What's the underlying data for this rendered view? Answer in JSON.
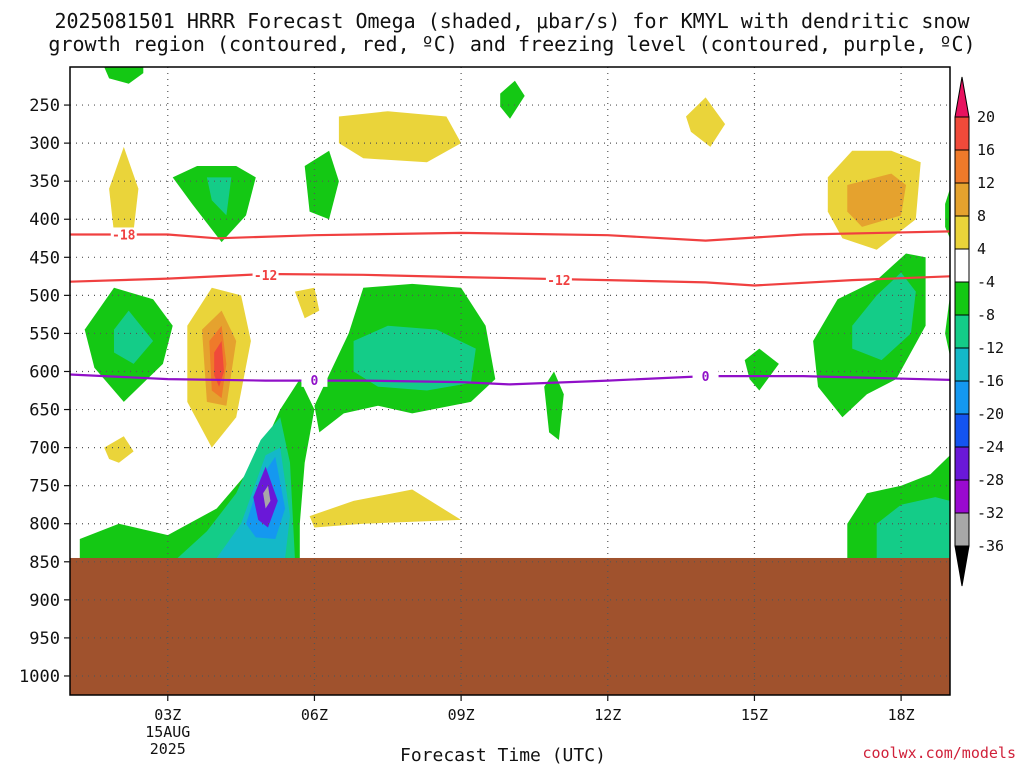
{
  "title_line1": "2025081501 HRRR Forecast Omega (shaded, μbar/s) for KMYL with dendritic snow",
  "title_line2": "growth region (contoured, red, ºC) and freezing level (contoured, purple, ºC)",
  "watermark": "coolwx.com/models",
  "chart_data": {
    "type": "heatmap",
    "xlabel": "Forecast Time (UTC)",
    "x_ticks": [
      {
        "label": "03Z",
        "hours": 3,
        "sub": [
          "15AUG",
          "2025"
        ]
      },
      {
        "label": "06Z",
        "hours": 6
      },
      {
        "label": "09Z",
        "hours": 9
      },
      {
        "label": "12Z",
        "hours": 12
      },
      {
        "label": "15Z",
        "hours": 15
      },
      {
        "label": "18Z",
        "hours": 18
      }
    ],
    "xlim_hours": [
      1,
      19
    ],
    "y_ticks": [
      250,
      300,
      350,
      400,
      450,
      500,
      550,
      600,
      650,
      700,
      750,
      800,
      850,
      900,
      950,
      1000
    ],
    "ylim_hPa": [
      200,
      1025
    ],
    "ground_pressure_hPa": 845,
    "colorbar": {
      "levels": [
        20,
        16,
        12,
        8,
        4,
        -4,
        -8,
        -12,
        -16,
        -20,
        -24,
        -28,
        -32,
        -36
      ],
      "colors": [
        "#e8125f",
        "#f04a3a",
        "#ef7a2a",
        "#e5a22e",
        "#ead43a",
        "#ffffff",
        "#14c814",
        "#14cc88",
        "#14b8c8",
        "#1498f0",
        "#1454f0",
        "#6a18d8",
        "#9a0ad0",
        "#a8a8a8",
        "#000000"
      ]
    },
    "contours": [
      {
        "label": "-18",
        "color": "#f04040",
        "points": [
          [
            1,
            420
          ],
          [
            3,
            420
          ],
          [
            4,
            425
          ],
          [
            6,
            421
          ],
          [
            9,
            418
          ],
          [
            12,
            421
          ],
          [
            14,
            428
          ],
          [
            16,
            420
          ],
          [
            19,
            416
          ]
        ]
      },
      {
        "label": "-12",
        "color": "#f04040",
        "points": [
          [
            1,
            482
          ],
          [
            3,
            478
          ],
          [
            5,
            472
          ],
          [
            7,
            473
          ],
          [
            9,
            476
          ],
          [
            12,
            480
          ],
          [
            14,
            483
          ],
          [
            15,
            487
          ],
          [
            17,
            480
          ],
          [
            19,
            475
          ]
        ]
      },
      {
        "label": "0",
        "color": "#9010c8",
        "points": [
          [
            1,
            604
          ],
          [
            3,
            610
          ],
          [
            5,
            612
          ],
          [
            7,
            612
          ],
          [
            9,
            614
          ],
          [
            10,
            617
          ],
          [
            12,
            612
          ],
          [
            14,
            606
          ],
          [
            16,
            606
          ],
          [
            19,
            611
          ]
        ]
      }
    ],
    "contour_labels": [
      {
        "text": "-18",
        "hours": 2.1,
        "hPa": 420
      },
      {
        "text": "-12",
        "hours": 5.0,
        "hPa": 473
      },
      {
        "text": "-12",
        "hours": 11.0,
        "hPa": 480
      },
      {
        "text": "0",
        "hours": 6.0,
        "hPa": 611
      },
      {
        "text": "0",
        "hours": 14.0,
        "hPa": 606
      }
    ],
    "omega_regions": [
      {
        "value": -6,
        "points": [
          [
            1.7,
            200
          ],
          [
            2.5,
            200
          ],
          [
            2.5,
            208
          ],
          [
            2.2,
            222
          ],
          [
            1.8,
            215
          ]
        ]
      },
      {
        "value": 6,
        "points": [
          [
            1.8,
            360
          ],
          [
            2.1,
            305
          ],
          [
            2.4,
            360
          ],
          [
            2.3,
            415
          ],
          [
            1.9,
            418
          ]
        ]
      },
      {
        "value": -6,
        "points": [
          [
            3.1,
            345
          ],
          [
            3.6,
            330
          ],
          [
            4.4,
            330
          ],
          [
            4.8,
            345
          ],
          [
            4.6,
            395
          ],
          [
            4.1,
            430
          ],
          [
            3.5,
            380
          ]
        ]
      },
      {
        "value": -12,
        "points": [
          [
            3.8,
            345
          ],
          [
            4.3,
            345
          ],
          [
            4.2,
            395
          ],
          [
            3.9,
            375
          ]
        ]
      },
      {
        "value": -6,
        "points": [
          [
            5.8,
            330
          ],
          [
            6.3,
            310
          ],
          [
            6.5,
            350
          ],
          [
            6.3,
            400
          ],
          [
            5.9,
            390
          ]
        ]
      },
      {
        "value": 6,
        "points": [
          [
            6.5,
            265
          ],
          [
            7.5,
            258
          ],
          [
            8.7,
            265
          ],
          [
            9.0,
            300
          ],
          [
            8.3,
            325
          ],
          [
            7.0,
            320
          ],
          [
            6.5,
            300
          ]
        ]
      },
      {
        "value": -6,
        "points": [
          [
            9.8,
            235
          ],
          [
            10.1,
            218
          ],
          [
            10.3,
            238
          ],
          [
            10.0,
            268
          ],
          [
            9.8,
            252
          ]
        ]
      },
      {
        "value": 6,
        "points": [
          [
            13.6,
            265
          ],
          [
            14.0,
            240
          ],
          [
            14.4,
            275
          ],
          [
            14.1,
            305
          ],
          [
            13.7,
            285
          ]
        ]
      },
      {
        "value": 6,
        "points": [
          [
            16.5,
            345
          ],
          [
            17.0,
            310
          ],
          [
            17.8,
            310
          ],
          [
            18.4,
            325
          ],
          [
            18.3,
            400
          ],
          [
            17.5,
            440
          ],
          [
            16.8,
            425
          ],
          [
            16.5,
            390
          ]
        ]
      },
      {
        "value": 10,
        "points": [
          [
            16.9,
            355
          ],
          [
            17.8,
            340
          ],
          [
            18.1,
            355
          ],
          [
            18.0,
            395
          ],
          [
            17.2,
            410
          ],
          [
            16.9,
            390
          ]
        ]
      },
      {
        "value": -6,
        "points": [
          [
            18.9,
            380
          ],
          [
            19.0,
            360
          ],
          [
            19.0,
            425
          ],
          [
            18.9,
            410
          ]
        ]
      },
      {
        "value": -6,
        "points": [
          [
            1.3,
            545
          ],
          [
            1.9,
            490
          ],
          [
            2.7,
            505
          ],
          [
            3.1,
            540
          ],
          [
            2.9,
            590
          ],
          [
            2.1,
            640
          ],
          [
            1.5,
            595
          ]
        ]
      },
      {
        "value": -12,
        "points": [
          [
            1.9,
            545
          ],
          [
            2.2,
            520
          ],
          [
            2.7,
            560
          ],
          [
            2.3,
            590
          ],
          [
            1.9,
            575
          ]
        ]
      },
      {
        "value": 6,
        "points": [
          [
            3.4,
            540
          ],
          [
            3.9,
            490
          ],
          [
            4.5,
            500
          ],
          [
            4.7,
            560
          ],
          [
            4.4,
            660
          ],
          [
            3.9,
            700
          ],
          [
            3.4,
            640
          ]
        ]
      },
      {
        "value": 10,
        "points": [
          [
            3.7,
            545
          ],
          [
            4.1,
            520
          ],
          [
            4.4,
            560
          ],
          [
            4.2,
            645
          ],
          [
            3.8,
            640
          ]
        ]
      },
      {
        "value": 14,
        "points": [
          [
            3.85,
            560
          ],
          [
            4.1,
            540
          ],
          [
            4.2,
            590
          ],
          [
            4.1,
            635
          ],
          [
            3.9,
            625
          ]
        ]
      },
      {
        "value": 18,
        "points": [
          [
            3.95,
            575
          ],
          [
            4.1,
            560
          ],
          [
            4.15,
            600
          ],
          [
            4.05,
            620
          ],
          [
            3.95,
            605
          ]
        ]
      },
      {
        "value": 6,
        "points": [
          [
            5.6,
            495
          ],
          [
            6.0,
            490
          ],
          [
            6.1,
            520
          ],
          [
            5.8,
            530
          ]
        ]
      },
      {
        "value": -6,
        "points": [
          [
            6.0,
            645
          ],
          [
            6.7,
            550
          ],
          [
            7.0,
            490
          ],
          [
            8.0,
            485
          ],
          [
            9.0,
            490
          ],
          [
            9.5,
            540
          ],
          [
            9.7,
            610
          ],
          [
            9.2,
            640
          ],
          [
            8.0,
            655
          ],
          [
            7.3,
            645
          ],
          [
            6.6,
            655
          ],
          [
            6.1,
            680
          ]
        ]
      },
      {
        "value": -12,
        "points": [
          [
            6.8,
            560
          ],
          [
            7.5,
            540
          ],
          [
            8.5,
            545
          ],
          [
            9.3,
            570
          ],
          [
            9.2,
            615
          ],
          [
            8.3,
            625
          ],
          [
            7.3,
            620
          ],
          [
            6.8,
            600
          ]
        ]
      },
      {
        "value": 6,
        "points": [
          [
            1.7,
            700
          ],
          [
            2.1,
            685
          ],
          [
            2.3,
            705
          ],
          [
            2.0,
            720
          ],
          [
            1.8,
            715
          ]
        ]
      },
      {
        "value": -6,
        "points": [
          [
            1.2,
            820
          ],
          [
            2.0,
            800
          ],
          [
            3.0,
            815
          ],
          [
            4.0,
            780
          ],
          [
            4.8,
            720
          ],
          [
            5.3,
            650
          ],
          [
            5.7,
            610
          ],
          [
            6.0,
            650
          ],
          [
            5.8,
            720
          ],
          [
            5.7,
            800
          ],
          [
            5.7,
            845
          ],
          [
            1.2,
            845
          ]
        ]
      },
      {
        "value": -12,
        "points": [
          [
            3.2,
            845
          ],
          [
            3.8,
            810
          ],
          [
            4.4,
            760
          ],
          [
            4.9,
            690
          ],
          [
            5.3,
            660
          ],
          [
            5.5,
            720
          ],
          [
            5.6,
            845
          ]
        ]
      },
      {
        "value": -16,
        "points": [
          [
            4.0,
            845
          ],
          [
            4.5,
            800
          ],
          [
            5.0,
            710
          ],
          [
            5.3,
            700
          ],
          [
            5.5,
            790
          ],
          [
            5.4,
            845
          ]
        ]
      },
      {
        "value": -20,
        "points": [
          [
            4.6,
            800
          ],
          [
            4.9,
            740
          ],
          [
            5.2,
            712
          ],
          [
            5.4,
            780
          ],
          [
            5.2,
            820
          ],
          [
            4.8,
            818
          ]
        ]
      },
      {
        "value": -26,
        "points": [
          [
            4.75,
            765
          ],
          [
            5.0,
            725
          ],
          [
            5.25,
            770
          ],
          [
            5.05,
            805
          ],
          [
            4.85,
            795
          ]
        ]
      },
      {
        "value": -34,
        "points": [
          [
            4.95,
            760
          ],
          [
            5.05,
            750
          ],
          [
            5.1,
            770
          ],
          [
            5.0,
            780
          ]
        ]
      },
      {
        "value": 6,
        "points": [
          [
            5.9,
            790
          ],
          [
            6.8,
            770
          ],
          [
            8.0,
            755
          ],
          [
            9.0,
            795
          ],
          [
            7.0,
            800
          ],
          [
            6.0,
            805
          ]
        ]
      },
      {
        "value": -6,
        "points": [
          [
            10.7,
            620
          ],
          [
            10.9,
            600
          ],
          [
            11.1,
            630
          ],
          [
            11.0,
            690
          ],
          [
            10.8,
            680
          ]
        ]
      },
      {
        "value": -6,
        "points": [
          [
            14.8,
            585
          ],
          [
            15.1,
            570
          ],
          [
            15.5,
            590
          ],
          [
            15.1,
            625
          ],
          [
            14.9,
            610
          ]
        ]
      },
      {
        "value": -6,
        "points": [
          [
            16.2,
            560
          ],
          [
            16.7,
            505
          ],
          [
            17.5,
            480
          ],
          [
            18.1,
            445
          ],
          [
            18.5,
            450
          ],
          [
            18.5,
            540
          ],
          [
            17.9,
            610
          ],
          [
            17.3,
            630
          ],
          [
            16.8,
            660
          ],
          [
            16.3,
            620
          ]
        ]
      },
      {
        "value": -12,
        "points": [
          [
            17.0,
            540
          ],
          [
            17.5,
            500
          ],
          [
            18.0,
            470
          ],
          [
            18.3,
            495
          ],
          [
            18.2,
            550
          ],
          [
            17.6,
            585
          ],
          [
            17.0,
            570
          ]
        ]
      },
      {
        "value": -6,
        "points": [
          [
            19.0,
            500
          ],
          [
            19.0,
            580
          ],
          [
            18.9,
            550
          ]
        ]
      },
      {
        "value": -6,
        "points": [
          [
            16.9,
            800
          ],
          [
            17.3,
            760
          ],
          [
            18.0,
            750
          ],
          [
            18.6,
            735
          ],
          [
            19.0,
            710
          ],
          [
            19.0,
            845
          ],
          [
            16.9,
            845
          ]
        ]
      },
      {
        "value": -12,
        "points": [
          [
            17.5,
            800
          ],
          [
            18.0,
            775
          ],
          [
            18.7,
            765
          ],
          [
            19.0,
            770
          ],
          [
            19.0,
            845
          ],
          [
            17.5,
            845
          ]
        ]
      }
    ]
  }
}
